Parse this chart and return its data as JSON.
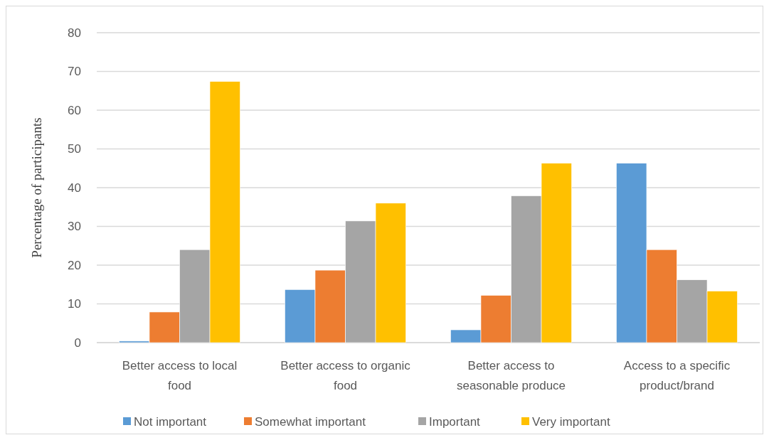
{
  "chart_data": {
    "type": "bar",
    "ylabel": "Percentage of participants",
    "categories": [
      "Better access to local food",
      "Better access to organic food",
      "Better access to seasonable produce",
      "Access to a specific product/brand"
    ],
    "series": [
      {
        "name": "Not important",
        "color": "#5b9bd5",
        "values": [
          0.4,
          13.7,
          3.3,
          46.3
        ]
      },
      {
        "name": "Somewhat important",
        "color": "#ed7d31",
        "values": [
          7.9,
          18.7,
          12.2,
          24.0
        ]
      },
      {
        "name": "Important",
        "color": "#a5a5a5",
        "values": [
          24.0,
          31.4,
          37.9,
          16.2
        ]
      },
      {
        "name": "Very important",
        "color": "#ffc000",
        "values": [
          67.4,
          36.0,
          46.3,
          13.3
        ]
      }
    ],
    "ylim": [
      0,
      80
    ],
    "yticks": [
      0,
      10,
      20,
      30,
      40,
      50,
      60,
      70,
      80
    ],
    "grid": "y",
    "legend": "bottom"
  }
}
